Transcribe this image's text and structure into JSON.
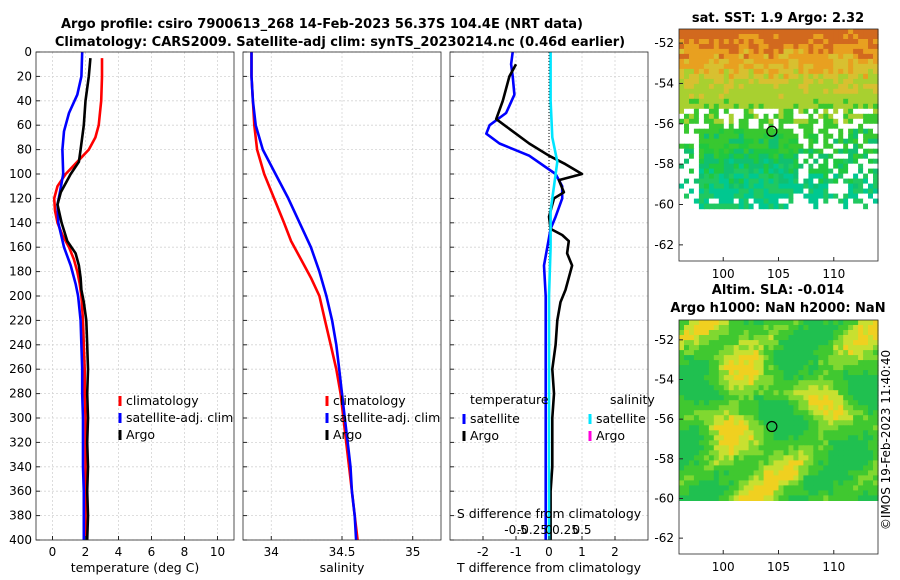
{
  "header": {
    "title_line1": "Argo profile: csiro 7900613_268 14-Feb-2023 56.37S 104.4E (NRT data)",
    "title_line2": "Climatology: CARS2009. Satellite-adj clim: synTS_20230214.nc (0.46d earlier)"
  },
  "colors": {
    "climatology": "#ff0000",
    "satellite": "#0000ff",
    "argo": "#000000",
    "salinity_satellite": "#00e5ff",
    "salinity_argo": "#ff00dd"
  },
  "chart_data": [
    {
      "type": "line",
      "id": "temperature",
      "xlabel": "temperature (deg C)",
      "ylabel": "",
      "xlim": [
        -1,
        11
      ],
      "ylim": [
        0,
        400
      ],
      "y_reversed": true,
      "xticks": [
        0,
        2,
        4,
        6,
        8,
        10
      ],
      "yticks": [
        0,
        20,
        40,
        60,
        80,
        100,
        120,
        140,
        160,
        180,
        200,
        220,
        240,
        260,
        280,
        300,
        320,
        340,
        360,
        380,
        400
      ],
      "grid": true,
      "legend_placement": "lower-right",
      "series": [
        {
          "name": "climatology",
          "color": "red",
          "points": [
            [
              3.0,
              5
            ],
            [
              3.0,
              20
            ],
            [
              2.95,
              40
            ],
            [
              2.8,
              60
            ],
            [
              2.6,
              70
            ],
            [
              2.2,
              80
            ],
            [
              1.5,
              90
            ],
            [
              0.8,
              100
            ],
            [
              0.3,
              110
            ],
            [
              0.1,
              120
            ],
            [
              0.15,
              130
            ],
            [
              0.3,
              140
            ],
            [
              0.6,
              150
            ],
            [
              1.0,
              160
            ],
            [
              1.3,
              170
            ],
            [
              1.5,
              180
            ],
            [
              1.65,
              190
            ],
            [
              1.75,
              200
            ],
            [
              1.85,
              220
            ],
            [
              1.9,
              240
            ],
            [
              1.95,
              260
            ],
            [
              1.95,
              280
            ],
            [
              2.0,
              300
            ],
            [
              2.0,
              320
            ],
            [
              2.0,
              340
            ],
            [
              2.0,
              360
            ],
            [
              2.0,
              380
            ],
            [
              2.0,
              400
            ]
          ]
        },
        {
          "name": "satellite-adj. clim",
          "color": "blue",
          "points": [
            [
              1.8,
              0
            ],
            [
              1.75,
              20
            ],
            [
              1.5,
              35
            ],
            [
              1.0,
              50
            ],
            [
              0.7,
              65
            ],
            [
              0.6,
              80
            ],
            [
              0.65,
              100
            ],
            [
              0.45,
              115
            ],
            [
              0.3,
              125
            ],
            [
              0.35,
              140
            ],
            [
              0.7,
              160
            ],
            [
              1.1,
              175
            ],
            [
              1.4,
              190
            ],
            [
              1.55,
              200
            ],
            [
              1.7,
              220
            ],
            [
              1.75,
              240
            ],
            [
              1.8,
              260
            ],
            [
              1.8,
              280
            ],
            [
              1.85,
              300
            ],
            [
              1.85,
              320
            ],
            [
              1.85,
              340
            ],
            [
              1.9,
              360
            ],
            [
              1.9,
              380
            ],
            [
              1.9,
              400
            ]
          ]
        },
        {
          "name": "Argo",
          "color": "black",
          "points": [
            [
              2.3,
              5
            ],
            [
              2.2,
              20
            ],
            [
              2.0,
              40
            ],
            [
              1.9,
              60
            ],
            [
              1.7,
              80
            ],
            [
              1.6,
              90
            ],
            [
              1.1,
              100
            ],
            [
              0.5,
              115
            ],
            [
              0.3,
              125
            ],
            [
              0.55,
              140
            ],
            [
              0.9,
              155
            ],
            [
              1.4,
              165
            ],
            [
              1.6,
              175
            ],
            [
              1.7,
              185
            ],
            [
              1.75,
              195
            ],
            [
              1.9,
              205
            ],
            [
              2.05,
              220
            ],
            [
              2.1,
              240
            ],
            [
              2.15,
              260
            ],
            [
              2.1,
              280
            ],
            [
              2.15,
              300
            ],
            [
              2.1,
              320
            ],
            [
              2.15,
              340
            ],
            [
              2.1,
              360
            ],
            [
              2.15,
              380
            ],
            [
              2.1,
              400
            ]
          ]
        }
      ]
    },
    {
      "type": "line",
      "id": "salinity",
      "xlabel": "salinity",
      "ylabel": "",
      "xlim": [
        33.8,
        35.2
      ],
      "ylim": [
        0,
        400
      ],
      "y_reversed": true,
      "xticks": [
        34,
        34.5,
        35
      ],
      "grid": true,
      "legend_placement": "lower-right",
      "series": [
        {
          "name": "climatology",
          "color": "red",
          "points": [
            [
              33.86,
              0
            ],
            [
              33.86,
              20
            ],
            [
              33.87,
              40
            ],
            [
              33.88,
              60
            ],
            [
              33.9,
              80
            ],
            [
              33.95,
              100
            ],
            [
              34.02,
              120
            ],
            [
              34.09,
              140
            ],
            [
              34.14,
              155
            ],
            [
              34.21,
              170
            ],
            [
              34.28,
              185
            ],
            [
              34.34,
              200
            ],
            [
              34.38,
              220
            ],
            [
              34.42,
              240
            ],
            [
              34.46,
              260
            ],
            [
              34.49,
              280
            ],
            [
              34.51,
              300
            ],
            [
              34.53,
              320
            ],
            [
              34.55,
              340
            ],
            [
              34.57,
              360
            ],
            [
              34.59,
              380
            ],
            [
              34.61,
              400
            ]
          ]
        },
        {
          "name": "satellite-adj. clim",
          "color": "blue",
          "points": [
            [
              33.86,
              0
            ],
            [
              33.86,
              20
            ],
            [
              33.87,
              40
            ],
            [
              33.89,
              60
            ],
            [
              33.94,
              80
            ],
            [
              34.03,
              100
            ],
            [
              34.12,
              120
            ],
            [
              34.2,
              140
            ],
            [
              34.28,
              160
            ],
            [
              34.34,
              180
            ],
            [
              34.39,
              200
            ],
            [
              34.43,
              220
            ],
            [
              34.46,
              240
            ],
            [
              34.48,
              260
            ],
            [
              34.5,
              280
            ],
            [
              34.52,
              300
            ],
            [
              34.54,
              320
            ],
            [
              34.56,
              340
            ],
            [
              34.57,
              360
            ],
            [
              34.59,
              380
            ],
            [
              34.6,
              400
            ]
          ]
        },
        {
          "name": "Argo",
          "color": "black",
          "points": []
        }
      ]
    },
    {
      "type": "line",
      "id": "difference",
      "xlabel": "T difference from climatology",
      "xlabel_top": "S difference from climatology",
      "ylabel": "",
      "xlim": [
        -3,
        3
      ],
      "ylim": [
        0,
        400
      ],
      "y_reversed": true,
      "xticks": [
        -2,
        -1,
        0,
        1,
        2
      ],
      "xtick_labels": [
        "-2",
        "-1",
        "0",
        "1",
        "2"
      ],
      "xticks_top": [
        -1,
        -0.5,
        0,
        0.5,
        1
      ],
      "xtick_labels_top": [
        "-0.5",
        "-0.25",
        "0",
        "0.25",
        "0.5"
      ],
      "grid": true,
      "zero_line": true,
      "legend_left_title": "temperature",
      "legend_right_title": "salinity",
      "series": [
        {
          "name": "satellite",
          "group": "temperature",
          "color": "blue",
          "points": [
            [
              -1.1,
              0
            ],
            [
              -1.15,
              10
            ],
            [
              -1.1,
              20
            ],
            [
              -1.05,
              35
            ],
            [
              -1.3,
              50
            ],
            [
              -1.8,
              60
            ],
            [
              -1.9,
              67
            ],
            [
              -1.5,
              75
            ],
            [
              -0.6,
              85
            ],
            [
              0.2,
              100
            ],
            [
              0.4,
              110
            ],
            [
              0.4,
              120
            ],
            [
              0.2,
              135
            ],
            [
              0.05,
              145
            ],
            [
              -0.15,
              175
            ],
            [
              -0.1,
              200
            ],
            [
              -0.1,
              250
            ],
            [
              -0.1,
              300
            ],
            [
              -0.1,
              350
            ],
            [
              -0.1,
              400
            ]
          ]
        },
        {
          "name": "Argo",
          "group": "temperature",
          "color": "black",
          "points": [
            [
              -1.0,
              10
            ],
            [
              -1.2,
              20
            ],
            [
              -1.4,
              40
            ],
            [
              -1.6,
              55
            ],
            [
              -1.1,
              65
            ],
            [
              -0.6,
              75
            ],
            [
              0.0,
              85
            ],
            [
              0.5,
              92
            ],
            [
              1.0,
              100
            ],
            [
              0.3,
              105
            ],
            [
              0.45,
              115
            ],
            [
              0.15,
              120
            ],
            [
              0.0,
              135
            ],
            [
              0.05,
              145
            ],
            [
              0.4,
              150
            ],
            [
              0.6,
              155
            ],
            [
              0.55,
              165
            ],
            [
              0.7,
              175
            ],
            [
              0.6,
              185
            ],
            [
              0.5,
              195
            ],
            [
              0.35,
              205
            ],
            [
              0.25,
              220
            ],
            [
              0.2,
              240
            ],
            [
              0.1,
              260
            ],
            [
              0.15,
              280
            ],
            [
              0.1,
              300
            ],
            [
              0.1,
              320
            ],
            [
              0.1,
              340
            ],
            [
              0.05,
              360
            ],
            [
              0.05,
              380
            ],
            [
              0.05,
              400
            ]
          ]
        },
        {
          "name": "satellite",
          "group": "salinity",
          "color": "cyan",
          "points": [
            [
              0.05,
              0
            ],
            [
              0.05,
              40
            ],
            [
              0.1,
              70
            ],
            [
              0.25,
              90
            ],
            [
              0.15,
              110
            ],
            [
              0.05,
              130
            ],
            [
              0.05,
              160
            ],
            [
              0.0,
              200
            ],
            [
              0.0,
              300
            ],
            [
              0.0,
              400
            ]
          ]
        },
        {
          "name": "Argo",
          "group": "salinity",
          "color": "magenta",
          "points": []
        }
      ]
    },
    {
      "type": "heatmap",
      "id": "sst-map",
      "title": "sat. SST: 1.9 Argo: 2.32",
      "xticks": [
        100,
        105,
        110
      ],
      "yticks": [
        -52,
        -54,
        -56,
        -58,
        -60,
        -62
      ],
      "xlim": [
        96,
        114
      ],
      "ylim": [
        -62.8,
        -51.3
      ],
      "data_ylim": [
        -60.2,
        -51.3
      ],
      "marker": {
        "lon": 104.4,
        "lat": -56.37
      }
    },
    {
      "type": "heatmap",
      "id": "sla-map",
      "title_line1": "Altim. SLA: -0.014",
      "title_line2": "Argo h1000: NaN h2000: NaN",
      "xticks": [
        100,
        105,
        110
      ],
      "yticks": [
        -52,
        -54,
        -56,
        -58,
        -60,
        -62
      ],
      "xlim": [
        96,
        114
      ],
      "ylim": [
        -62.8,
        -51.0
      ],
      "data_ylim": [
        -60.1,
        -51.0
      ],
      "marker": {
        "lon": 104.4,
        "lat": -56.37
      }
    }
  ],
  "watermark": "©IMOS 19-Feb-2023 11:40:40"
}
